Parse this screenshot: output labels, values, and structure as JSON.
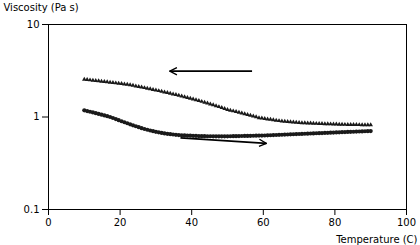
{
  "chart_data": {
    "type": "scatter",
    "title": "",
    "xlabel": "Temperature (C)",
    "ylabel": "Viscosity (Pa s)",
    "x": [
      10,
      10.8,
      11.6,
      12.4,
      13.2,
      14,
      14.8,
      15.6,
      16.4,
      17.2,
      18,
      18.8,
      19.6,
      20.4,
      21.2,
      22,
      22.8,
      23.6,
      24.4,
      25.2,
      26,
      26.8,
      27.6,
      28.4,
      29.2,
      30,
      30.8,
      31.6,
      32.4,
      33.2,
      34,
      34.8,
      35.6,
      36.4,
      37.2,
      38,
      38.8,
      39.6,
      40.4,
      41.2,
      42,
      42.8,
      43.6,
      44.4,
      45.2,
      46,
      46.8,
      47.6,
      48.4,
      49.2,
      50,
      50.8,
      51.6,
      52.4,
      53.2,
      54,
      54.8,
      55.6,
      56.4,
      57.2,
      58,
      58.8,
      59.6,
      60.4,
      61.2,
      62,
      62.8,
      63.6,
      64.4,
      65.2,
      66,
      66.8,
      67.6,
      68.4,
      69.2,
      70,
      70.8,
      71.6,
      72.4,
      73.2,
      74,
      74.8,
      75.6,
      76.4,
      77.2,
      78,
      78.8,
      79.6,
      80.4,
      81.2,
      82,
      82.8,
      83.6,
      84.4,
      85.2,
      86,
      86.8,
      87.6,
      88.4,
      89.2,
      90
    ],
    "series": [
      {
        "marker": "triangle",
        "color": "#1a1a1a",
        "values": [
          2.55,
          2.53,
          2.51,
          2.49,
          2.47,
          2.45,
          2.43,
          2.41,
          2.39,
          2.37,
          2.35,
          2.33,
          2.31,
          2.29,
          2.27,
          2.25,
          2.22,
          2.19,
          2.16,
          2.13,
          2.1,
          2.07,
          2.04,
          2.01,
          1.98,
          1.95,
          1.92,
          1.89,
          1.86,
          1.83,
          1.8,
          1.77,
          1.74,
          1.71,
          1.68,
          1.65,
          1.62,
          1.59,
          1.56,
          1.53,
          1.5,
          1.47,
          1.44,
          1.41,
          1.38,
          1.35,
          1.32,
          1.29,
          1.26,
          1.23,
          1.2,
          1.18,
          1.16,
          1.14,
          1.12,
          1.1,
          1.08,
          1.06,
          1.04,
          1.02,
          1.0,
          0.98,
          0.97,
          0.96,
          0.95,
          0.94,
          0.93,
          0.92,
          0.91,
          0.9,
          0.895,
          0.89,
          0.885,
          0.88,
          0.875,
          0.87,
          0.865,
          0.862,
          0.859,
          0.856,
          0.853,
          0.85,
          0.847,
          0.845,
          0.843,
          0.841,
          0.839,
          0.837,
          0.835,
          0.833,
          0.831,
          0.829,
          0.828,
          0.827,
          0.826,
          0.825,
          0.824,
          0.823,
          0.822,
          0.821,
          0.82
        ]
      },
      {
        "marker": "circle",
        "color": "#1a1a1a",
        "values": [
          1.18,
          1.16,
          1.14,
          1.12,
          1.1,
          1.08,
          1.06,
          1.04,
          1.02,
          1.0,
          0.975,
          0.95,
          0.925,
          0.9,
          0.878,
          0.856,
          0.834,
          0.812,
          0.794,
          0.776,
          0.758,
          0.742,
          0.728,
          0.715,
          0.703,
          0.692,
          0.682,
          0.673,
          0.665,
          0.658,
          0.652,
          0.647,
          0.642,
          0.638,
          0.635,
          0.632,
          0.63,
          0.628,
          0.626,
          0.624,
          0.622,
          0.621,
          0.62,
          0.619,
          0.619,
          0.618,
          0.618,
          0.618,
          0.618,
          0.618,
          0.618,
          0.619,
          0.62,
          0.621,
          0.622,
          0.623,
          0.624,
          0.625,
          0.626,
          0.627,
          0.628,
          0.629,
          0.63,
          0.631,
          0.633,
          0.635,
          0.637,
          0.639,
          0.641,
          0.643,
          0.645,
          0.647,
          0.649,
          0.651,
          0.653,
          0.655,
          0.657,
          0.659,
          0.661,
          0.663,
          0.665,
          0.667,
          0.669,
          0.671,
          0.673,
          0.675,
          0.677,
          0.679,
          0.681,
          0.683,
          0.685,
          0.687,
          0.689,
          0.691,
          0.693,
          0.695,
          0.697,
          0.699,
          0.701,
          0.703,
          0.705
        ]
      }
    ],
    "xlim": [
      0,
      100
    ],
    "xticks": [
      0,
      20,
      40,
      60,
      80,
      100
    ],
    "ylim": [
      0.1,
      10
    ],
    "yticks": [
      0.1,
      1,
      10
    ],
    "log": "y",
    "grid": false
  }
}
